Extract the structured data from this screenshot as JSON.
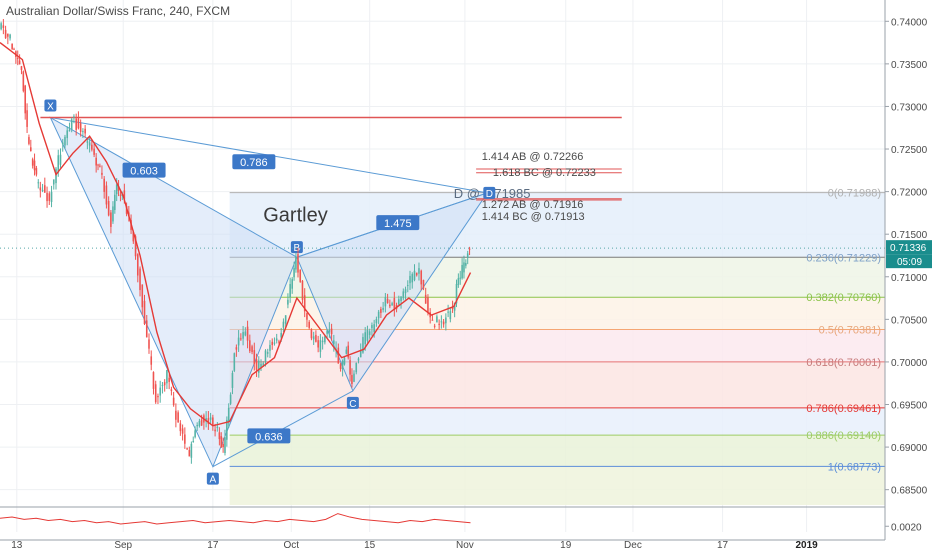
{
  "header": {
    "title": "Australian Dollar/Swiss Franc, 240, FXCM"
  },
  "colors": {
    "candle_up": "#54b3a6",
    "candle_down": "#ef5350",
    "ma": "#e53935",
    "pattern_fill": "#cddff5",
    "pattern_stroke": "#5b9bd5",
    "label_bg": "#3c78c8",
    "price_badge": "#1a8d8d"
  },
  "chart_data": {
    "type": "candlestick",
    "title": "Australian Dollar/Swiss Franc, 240, FXCM",
    "y_axis": {
      "range": [
        0.6832,
        0.7425
      ],
      "ticks": [
        "0.74000",
        "0.73500",
        "0.73000",
        "0.72500",
        "0.72000",
        "0.71500",
        "0.71000",
        "0.70500",
        "0.70000",
        "0.69500",
        "0.69000",
        "0.68500"
      ],
      "side": "right"
    },
    "x_axis": {
      "range": [
        "2018-08-10",
        "2019-01-15"
      ],
      "ticks": [
        "13",
        "Sep",
        "17",
        "Oct",
        "15",
        "Nov",
        "19",
        "Dec",
        "17",
        "2019"
      ]
    },
    "grid": true,
    "price_path": [
      [
        "2018-08-10",
        0.7395
      ],
      [
        "2018-08-12",
        0.738
      ],
      [
        "2018-08-13",
        0.736
      ],
      [
        "2018-08-14",
        0.7345
      ],
      [
        "2018-08-15",
        0.727
      ],
      [
        "2018-08-16",
        0.723
      ],
      [
        "2018-08-17",
        0.721
      ],
      [
        "2018-08-19",
        0.719
      ],
      [
        "2018-08-21",
        0.725
      ],
      [
        "2018-08-23",
        0.7285
      ],
      [
        "2018-08-25",
        0.727
      ],
      [
        "2018-08-27",
        0.724
      ],
      [
        "2018-08-28",
        0.7225
      ],
      [
        "2018-08-30",
        0.7165
      ],
      [
        "2018-08-31",
        0.7205
      ],
      [
        "2018-09-01",
        0.7195
      ],
      [
        "2018-09-03",
        0.7145
      ],
      [
        "2018-09-05",
        0.7045
      ],
      [
        "2018-09-07",
        0.6955
      ],
      [
        "2018-09-09",
        0.6985
      ],
      [
        "2018-09-11",
        0.6925
      ],
      [
        "2018-09-13",
        0.689
      ],
      [
        "2018-09-14",
        0.6925
      ],
      [
        "2018-09-16",
        0.6935
      ],
      [
        "2018-09-18",
        0.692
      ],
      [
        "2018-09-19",
        0.6895
      ],
      [
        "2018-09-20",
        0.6945
      ],
      [
        "2018-09-21",
        0.7015
      ],
      [
        "2018-09-23",
        0.7035
      ],
      [
        "2018-09-25",
        0.699
      ],
      [
        "2018-09-27",
        0.7015
      ],
      [
        "2018-09-29",
        0.7025
      ],
      [
        "2018-10-01",
        0.7085
      ],
      [
        "2018-10-02",
        0.7125
      ],
      [
        "2018-10-04",
        0.7045
      ],
      [
        "2018-10-06",
        0.7015
      ],
      [
        "2018-10-08",
        0.7035
      ],
      [
        "2018-10-10",
        0.6995
      ],
      [
        "2018-10-11",
        0.7015
      ],
      [
        "2018-10-12",
        0.6975
      ],
      [
        "2018-10-14",
        0.7025
      ],
      [
        "2018-10-16",
        0.7045
      ],
      [
        "2018-10-18",
        0.7075
      ],
      [
        "2018-10-20",
        0.7065
      ],
      [
        "2018-10-22",
        0.7095
      ],
      [
        "2018-10-24",
        0.7105
      ],
      [
        "2018-10-26",
        0.705
      ],
      [
        "2018-10-28",
        0.7045
      ],
      [
        "2018-10-30",
        0.7065
      ],
      [
        "2018-10-31",
        0.7095
      ],
      [
        "2018-11-01",
        0.7115
      ],
      [
        "2018-11-02",
        0.7134
      ]
    ],
    "moving_average": [
      [
        "2018-08-10",
        0.7375
      ],
      [
        "2018-08-14",
        0.7355
      ],
      [
        "2018-08-17",
        0.728
      ],
      [
        "2018-08-20",
        0.722
      ],
      [
        "2018-08-23",
        0.7245
      ],
      [
        "2018-08-26",
        0.7265
      ],
      [
        "2018-08-29",
        0.7235
      ],
      [
        "2018-09-01",
        0.7195
      ],
      [
        "2018-09-04",
        0.7125
      ],
      [
        "2018-09-07",
        0.7035
      ],
      [
        "2018-09-10",
        0.697
      ],
      [
        "2018-09-13",
        0.6945
      ],
      [
        "2018-09-17",
        0.6925
      ],
      [
        "2018-09-20",
        0.693
      ],
      [
        "2018-09-24",
        0.6985
      ],
      [
        "2018-09-28",
        0.7005
      ],
      [
        "2018-10-02",
        0.7075
      ],
      [
        "2018-10-06",
        0.704
      ],
      [
        "2018-10-10",
        0.7005
      ],
      [
        "2018-10-14",
        0.7015
      ],
      [
        "2018-10-18",
        0.7055
      ],
      [
        "2018-10-22",
        0.7075
      ],
      [
        "2018-10-26",
        0.7055
      ],
      [
        "2018-10-30",
        0.7065
      ],
      [
        "2018-11-02",
        0.7105
      ]
    ],
    "current_price": "0.71336",
    "countdown": "05:09",
    "harmonic_pattern": {
      "name": "Gartley",
      "points": [
        {
          "label": "X",
          "date": "2018-08-19",
          "price": 0.7287
        },
        {
          "label": "A",
          "date": "2018-09-17",
          "price": 0.6877
        },
        {
          "label": "B",
          "date": "2018-10-02",
          "price": 0.7123
        },
        {
          "label": "C",
          "date": "2018-10-12",
          "price": 0.6966
        },
        {
          "label": "D",
          "date": "2018-11-05",
          "price": 0.71985
        }
      ],
      "ratios": {
        "XB": "0.603",
        "AC": "0.636",
        "BD": "1.475",
        "XD": "0.786"
      },
      "d_label": "D @ 0.71985",
      "projections": [
        {
          "text": "1.414 AB @ 0.72266",
          "price": 0.72266
        },
        {
          "text": "1.618 BC @ 0.72233",
          "price": 0.72233
        },
        {
          "text": "1.272 AB @ 0.71916",
          "price": 0.71916
        },
        {
          "text": "1.414 BC @ 0.71913",
          "price": 0.71913
        }
      ],
      "x_level": 0.7287
    },
    "fib_retracement": [
      {
        "label": "0(0.71988)",
        "level": 0.71988,
        "line": "#b0b0b0",
        "fill": "#e4eefa",
        "text": "#b0b0b0"
      },
      {
        "label": "0.236(0.71229)",
        "level": 0.71229,
        "line": "#7a7a7a",
        "fill": "#eff4e6",
        "text": "#7fa1c8"
      },
      {
        "label": "0.382(0.70760)",
        "level": 0.7076,
        "line": "#8bc34a",
        "fill": "#fdf2e6",
        "text": "#8bc34a"
      },
      {
        "label": "0.5(0.70381)",
        "level": 0.70381,
        "line": "#f5a673",
        "fill": "#fbe9ee",
        "text": "#e8a77c"
      },
      {
        "label": "0.618(0.70001)",
        "level": 0.70001,
        "line": "#e57373",
        "fill": "#fbe5e3",
        "text": "#c77b7b"
      },
      {
        "label": "0.786(0.69461)",
        "level": 0.69461,
        "line": "#e53935",
        "fill": "#e8f0fb",
        "text": "#e53935"
      },
      {
        "label": "0.886(0.69140)",
        "level": 0.6914,
        "line": "#9ccc65",
        "fill": "#e9f2d8",
        "text": "#9ccc65"
      },
      {
        "label": "1(0.68773)",
        "level": 0.68773,
        "line": "#5b8dd9",
        "fill": "#eef3dc",
        "text": "#5b8dd9"
      }
    ],
    "fib_start_date": "2018-09-20",
    "oscillator": {
      "ticks": [
        "0.0020"
      ],
      "range": [
        0.0015,
        0.0035
      ],
      "values": [
        0.0027,
        0.0028,
        0.0026,
        0.0027,
        0.0025,
        0.0026,
        0.0024,
        0.0025,
        0.0023,
        0.0024,
        0.0022,
        0.0023,
        0.0024,
        0.0022,
        0.0023,
        0.0024,
        0.0025,
        0.0023,
        0.0024,
        0.0025,
        0.0024,
        0.0023,
        0.0025,
        0.0024,
        0.0026,
        0.0025,
        0.0024,
        0.0026,
        0.0031,
        0.0028,
        0.0026,
        0.0025,
        0.0024,
        0.0023,
        0.0025,
        0.0024,
        0.0026,
        0.0025,
        0.0024,
        0.0023
      ]
    }
  }
}
